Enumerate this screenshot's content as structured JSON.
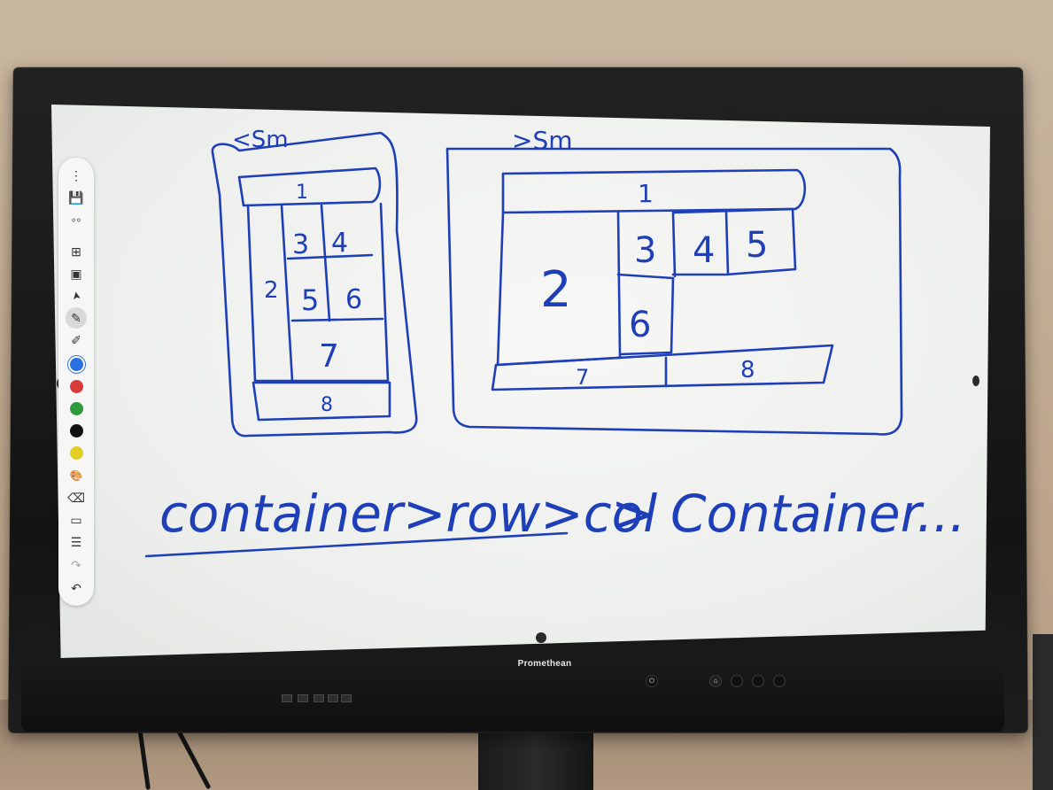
{
  "brand": "Promethean",
  "toolbar": {
    "items": [
      {
        "name": "more-icon",
        "glyph": "⋮"
      },
      {
        "name": "save-icon",
        "glyph": "💾"
      },
      {
        "name": "split-icon",
        "glyph": "⸰⸰"
      },
      {
        "name": "grid-icon",
        "glyph": "⊞"
      },
      {
        "name": "image-icon",
        "glyph": "▣"
      },
      {
        "name": "pointer-icon",
        "glyph": "➤"
      },
      {
        "name": "pen-icon",
        "glyph": "✎"
      },
      {
        "name": "highlighter-icon",
        "glyph": "✐"
      }
    ],
    "colors": [
      "#2a6fe0",
      "#d63a3a",
      "#2f9a3a",
      "#111111",
      "#e3cf24"
    ],
    "lower_items": [
      {
        "name": "palette-icon",
        "glyph": "🎨"
      },
      {
        "name": "eraser-icon",
        "glyph": "⌫"
      },
      {
        "name": "eraser-alt-icon",
        "glyph": "▭"
      },
      {
        "name": "clear-icon",
        "glyph": "☰"
      },
      {
        "name": "redo-icon",
        "glyph": "↷"
      },
      {
        "name": "undo-icon",
        "glyph": "↶"
      }
    ]
  },
  "whiteboard": {
    "label_small": "<Sm",
    "label_large": ">Sm",
    "small_cells": [
      "1",
      "2",
      "3",
      "4",
      "5",
      "6",
      "7",
      "8"
    ],
    "large_cells": [
      "1",
      "2",
      "3",
      "4",
      "5",
      "6",
      "7",
      "8"
    ],
    "formula_left": "container>row>col",
    "formula_right": "> Container..."
  }
}
